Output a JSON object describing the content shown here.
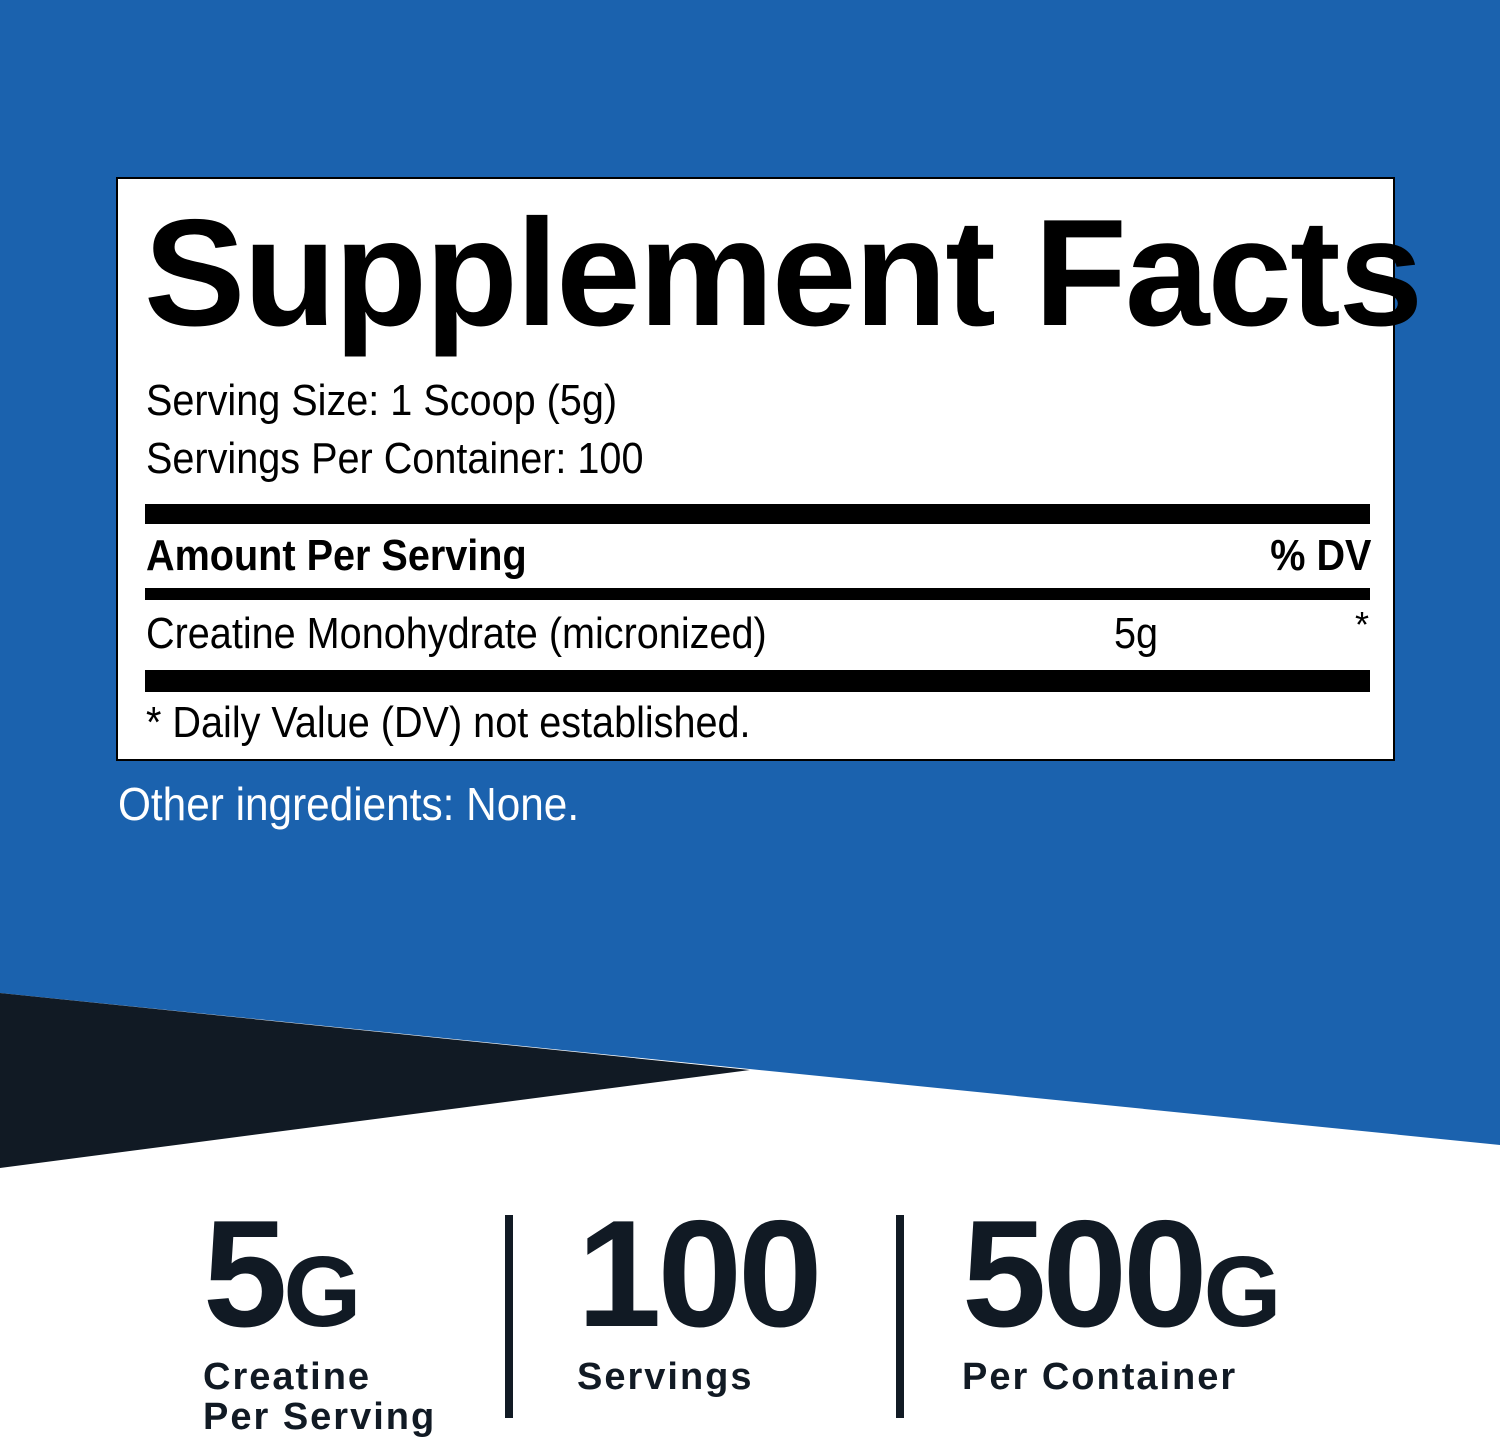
{
  "colors": {
    "background_blue": "#1b62ae",
    "dark_navy": "#111a24",
    "white": "#ffffff"
  },
  "label": {
    "title": "Supplement Facts",
    "serving_size": "Serving Size: 1 Scoop (5g)",
    "servings_per_container": "Servings Per Container: 100",
    "amount_header": "Amount Per Serving",
    "dv_header": "% DV",
    "rows": [
      {
        "name": "Creatine Monohydrate (micronized)",
        "amount": "5g",
        "dv": "*"
      }
    ],
    "footnote": "* Daily Value (DV) not established."
  },
  "other_ingredients": "Other ingredients: None.",
  "stats": [
    {
      "value": "5",
      "unit": "G",
      "caption_1": "Creatine",
      "caption_2": "Per Serving"
    },
    {
      "value": "100",
      "unit": "",
      "caption_1": "Servings",
      "caption_2": ""
    },
    {
      "value": "500",
      "unit": "G",
      "caption_1": "Per Container",
      "caption_2": ""
    }
  ]
}
